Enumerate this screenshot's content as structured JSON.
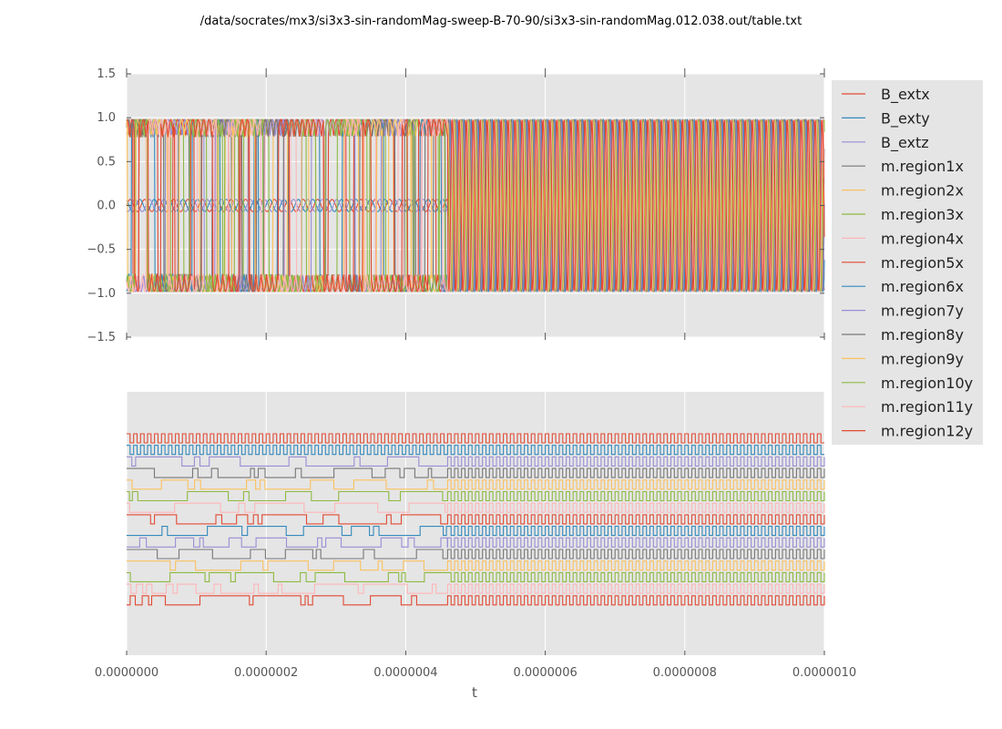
{
  "figure": {
    "title": "/data/socrates/mx3/si3x3-sin-randomMag-sweep-B-70-90/si3x3-sin-randomMag.012.038.out/table.txt",
    "background": "#ffffff",
    "axes_background": "#e5e5e5",
    "grid_color": "#ffffff"
  },
  "chart_data": [
    {
      "type": "line",
      "panel": "top",
      "xlabel": "",
      "ylabel": "",
      "xlim": [
        0,
        1e-06
      ],
      "ylim": [
        -1.5,
        1.5
      ],
      "y_ticks": [
        "1.5",
        "1.0",
        "0.5",
        "0.0",
        "−0.5",
        "−1.0",
        "−1.5"
      ],
      "y_tick_values": [
        1.5,
        1.0,
        0.5,
        0.0,
        -0.5,
        -1.0,
        -1.5
      ],
      "grid": true,
      "legend": "outside-right",
      "series": [
        {
          "name": "B_extx",
          "color": "#e24a33",
          "kind": "sine",
          "amplitude": 0.07,
          "cycles": 22
        },
        {
          "name": "B_exty",
          "color": "#348abd",
          "kind": "sine",
          "amplitude": 0.07,
          "cycles": 22
        },
        {
          "name": "B_extz",
          "color": "#988ed5",
          "kind": "sine",
          "amplitude": 0.07,
          "cycles": 22
        },
        {
          "name": "m.region1x",
          "color": "#777777",
          "kind": "switching",
          "switch_until": 4.6e-07,
          "cycles": 100
        },
        {
          "name": "m.region2x",
          "color": "#fbc15e",
          "kind": "switching",
          "switch_until": 4.6e-07,
          "cycles": 100
        },
        {
          "name": "m.region3x",
          "color": "#8eba42",
          "kind": "switching",
          "switch_until": 4.6e-07,
          "cycles": 100
        },
        {
          "name": "m.region4x",
          "color": "#ffb5b8",
          "kind": "switching",
          "switch_until": 4.6e-07,
          "cycles": 100
        },
        {
          "name": "m.region5x",
          "color": "#e24a33",
          "kind": "switching",
          "switch_until": 4.6e-07,
          "cycles": 100
        },
        {
          "name": "m.region6x",
          "color": "#348abd",
          "kind": "switching",
          "switch_until": 4.6e-07,
          "cycles": 100
        },
        {
          "name": "m.region7y",
          "color": "#988ed5",
          "kind": "switching",
          "switch_until": 4.6e-07,
          "cycles": 100
        },
        {
          "name": "m.region8y",
          "color": "#777777",
          "kind": "switching",
          "switch_until": 4.6e-07,
          "cycles": 100
        },
        {
          "name": "m.region9y",
          "color": "#fbc15e",
          "kind": "switching",
          "switch_until": 4.6e-07,
          "cycles": 100
        },
        {
          "name": "m.region10y",
          "color": "#8eba42",
          "kind": "switching",
          "switch_until": 4.6e-07,
          "cycles": 100
        },
        {
          "name": "m.region11y",
          "color": "#ffb5b8",
          "kind": "switching",
          "switch_until": 4.6e-07,
          "cycles": 100
        },
        {
          "name": "m.region12y",
          "color": "#e24a33",
          "kind": "switching",
          "switch_until": 4.6e-07,
          "cycles": 100
        }
      ]
    },
    {
      "type": "line",
      "panel": "bottom",
      "subtype": "digital-traces",
      "xlabel": "t",
      "ylabel": "",
      "xlim": [
        0,
        1e-06
      ],
      "x_ticks": [
        "0.0000000",
        "0.0000002",
        "0.0000004",
        "0.0000006",
        "0.0000008",
        "0.0000010"
      ],
      "x_tick_values": [
        0,
        2e-07,
        4e-07,
        6e-07,
        8e-07,
        1e-06
      ],
      "grid": true,
      "traces": [
        {
          "name": "B_extx",
          "color": "#e24a33",
          "pattern": "square",
          "cycles": 100
        },
        {
          "name": "B_exty",
          "color": "#348abd",
          "pattern": "square",
          "cycles": 100
        },
        {
          "name": "B_extz",
          "color": "#988ed5",
          "pattern": "random-then-square",
          "switch_until": 4.6e-07
        },
        {
          "name": "m.region1x",
          "color": "#777777",
          "pattern": "random-then-square",
          "switch_until": 4.6e-07
        },
        {
          "name": "m.region2x",
          "color": "#fbc15e",
          "pattern": "random-then-square",
          "switch_until": 4.6e-07
        },
        {
          "name": "m.region3x",
          "color": "#8eba42",
          "pattern": "random-then-square",
          "switch_until": 4.6e-07
        },
        {
          "name": "m.region4x",
          "color": "#ffb5b8",
          "pattern": "random-then-square",
          "switch_until": 4.6e-07
        },
        {
          "name": "m.region5x",
          "color": "#e24a33",
          "pattern": "random-then-square",
          "switch_until": 4.6e-07
        },
        {
          "name": "m.region6x",
          "color": "#348abd",
          "pattern": "random-then-square",
          "switch_until": 4.6e-07
        },
        {
          "name": "m.region7y",
          "color": "#988ed5",
          "pattern": "random-then-square",
          "switch_until": 4.6e-07
        },
        {
          "name": "m.region8y",
          "color": "#777777",
          "pattern": "random-then-square",
          "switch_until": 4.6e-07
        },
        {
          "name": "m.region9y",
          "color": "#fbc15e",
          "pattern": "random-then-square",
          "switch_until": 4.6e-07
        },
        {
          "name": "m.region10y",
          "color": "#8eba42",
          "pattern": "random-then-square",
          "switch_until": 4.6e-07
        },
        {
          "name": "m.region11y",
          "color": "#ffb5b8",
          "pattern": "random-then-square",
          "switch_until": 4.6e-07
        },
        {
          "name": "m.region12y",
          "color": "#e24a33",
          "pattern": "random-then-square",
          "switch_until": 4.6e-07
        }
      ]
    }
  ]
}
